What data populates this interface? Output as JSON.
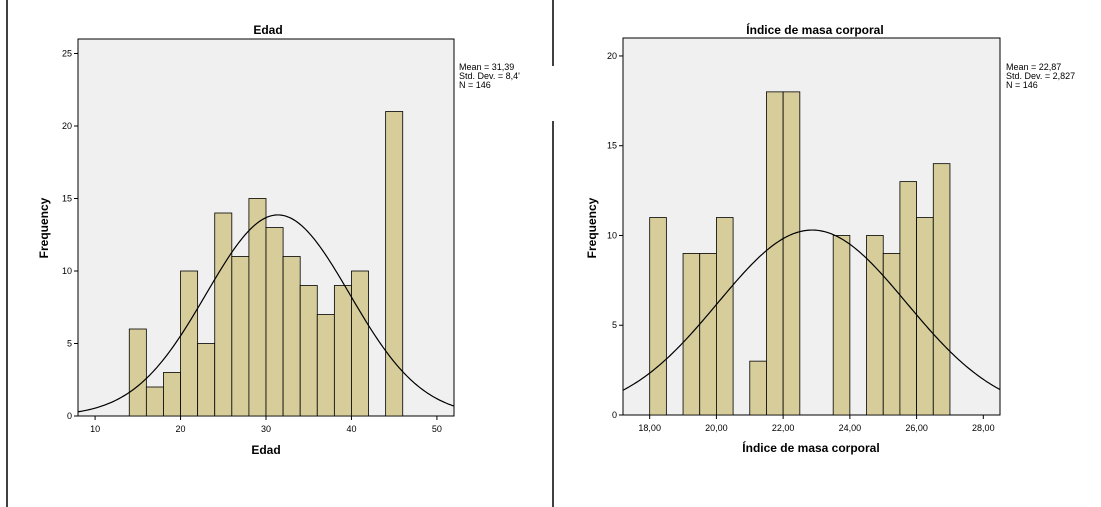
{
  "chart_data": [
    {
      "type": "bar",
      "title": "Edad",
      "xlabel": "Edad",
      "ylabel": "Frequency",
      "xlim": [
        8,
        52
      ],
      "ylim": [
        0,
        26
      ],
      "xticks": [
        10,
        20,
        30,
        40,
        50
      ],
      "yticks": [
        0,
        5,
        10,
        15,
        20,
        25
      ],
      "xtick_labels": [
        "10",
        "20",
        "30",
        "40",
        "50"
      ],
      "ytick_labels": [
        "0",
        "5",
        "10",
        "15",
        "20",
        "25"
      ],
      "bin_width": 2,
      "bins": [
        {
          "x0": 14,
          "value": 6
        },
        {
          "x0": 16,
          "value": 2
        },
        {
          "x0": 18,
          "value": 3
        },
        {
          "x0": 20,
          "value": 10
        },
        {
          "x0": 22,
          "value": 5
        },
        {
          "x0": 24,
          "value": 14
        },
        {
          "x0": 26,
          "value": 11
        },
        {
          "x0": 28,
          "value": 15
        },
        {
          "x0": 30,
          "value": 13
        },
        {
          "x0": 32,
          "value": 11
        },
        {
          "x0": 34,
          "value": 9
        },
        {
          "x0": 36,
          "value": 7
        },
        {
          "x0": 38,
          "value": 9
        },
        {
          "x0": 40,
          "value": 10
        },
        {
          "x0": 44,
          "value": 21
        }
      ],
      "normal_curve": {
        "mean": 31.39,
        "sd": 8.4,
        "n": 146
      },
      "stats": [
        "Mean = 31,39",
        "Std. Dev. = 8,4'",
        "N = 146"
      ],
      "grid": false,
      "legend": "right"
    },
    {
      "type": "bar",
      "title": "Índice de masa corporal",
      "xlabel": "Índice de masa corporal",
      "ylabel": "Frequency",
      "xlim": [
        17.2,
        28.5
      ],
      "ylim": [
        0,
        21
      ],
      "xticks": [
        18,
        20,
        22,
        24,
        26,
        28
      ],
      "yticks": [
        0,
        5,
        10,
        15,
        20
      ],
      "xtick_labels": [
        "18,00",
        "20,00",
        "22,00",
        "24,00",
        "26,00",
        "28,00"
      ],
      "ytick_labels": [
        "0",
        "5",
        "10",
        "15",
        "20"
      ],
      "bin_width": 0.5,
      "bins": [
        {
          "x0": 18.0,
          "value": 11
        },
        {
          "x0": 19.0,
          "value": 9
        },
        {
          "x0": 19.5,
          "value": 9
        },
        {
          "x0": 20.0,
          "value": 11
        },
        {
          "x0": 21.0,
          "value": 3
        },
        {
          "x0": 21.5,
          "value": 18
        },
        {
          "x0": 22.0,
          "value": 18
        },
        {
          "x0": 23.5,
          "value": 10
        },
        {
          "x0": 24.5,
          "value": 10
        },
        {
          "x0": 25.0,
          "value": 9
        },
        {
          "x0": 25.5,
          "value": 13
        },
        {
          "x0": 26.0,
          "value": 11
        },
        {
          "x0": 26.5,
          "value": 14
        }
      ],
      "normal_curve": {
        "mean": 22.87,
        "sd": 2.827,
        "n": 146
      },
      "stats": [
        "Mean = 22,87",
        "Std. Dev. = 2,827",
        "N = 146"
      ],
      "grid": false,
      "legend": "right"
    }
  ],
  "colors": {
    "bar_fill": "#d6cd9b",
    "bar_stroke": "#000000",
    "plot_bg": "#f0f0f0",
    "curve": "#000000",
    "divider": "#000000"
  }
}
